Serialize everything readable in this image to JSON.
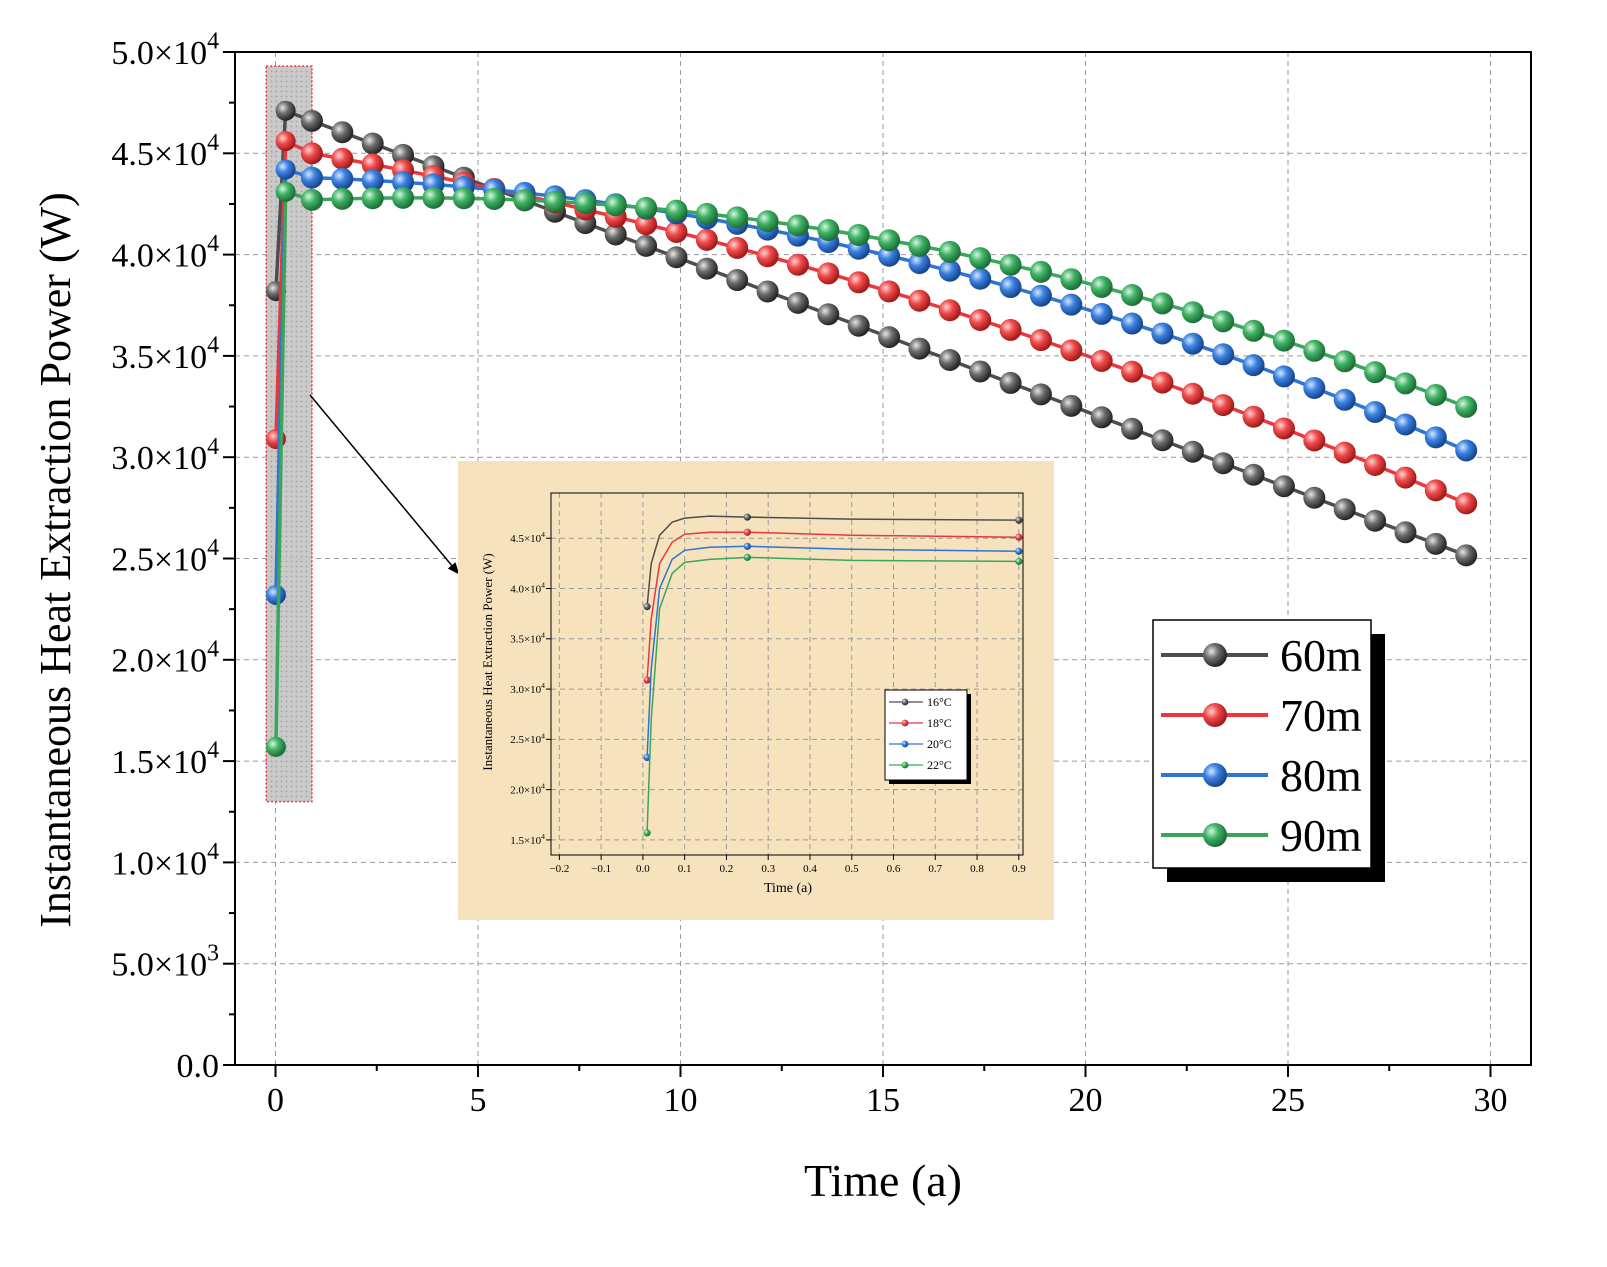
{
  "chart_data": [
    {
      "id": "main",
      "type": "line",
      "xlabel": "Time (a)",
      "ylabel": "Instantaneous Heat Extraction Power (W)",
      "xlim": [
        -1,
        31
      ],
      "ylim": [
        0,
        50000
      ],
      "xticks": [
        0,
        5,
        10,
        15,
        20,
        25,
        30
      ],
      "xtick_labels": [
        "0",
        "5",
        "10",
        "15",
        "20",
        "25",
        "30"
      ],
      "yticks": [
        0,
        5000,
        10000,
        15000,
        20000,
        25000,
        30000,
        35000,
        40000,
        45000,
        50000
      ],
      "ytick_labels": [
        {
          "base": "0.0",
          "exp": ""
        },
        {
          "base": "5.0×10",
          "exp": "3"
        },
        {
          "base": "1.0×10",
          "exp": "4"
        },
        {
          "base": "1.5×10",
          "exp": "4"
        },
        {
          "base": "2.0×10",
          "exp": "4"
        },
        {
          "base": "2.5×10",
          "exp": "4"
        },
        {
          "base": "3.0×10",
          "exp": "4"
        },
        {
          "base": "3.5×10",
          "exp": "4"
        },
        {
          "base": "4.0×10",
          "exp": "4"
        },
        {
          "base": "4.5×10",
          "exp": "4"
        },
        {
          "base": "5.0×10",
          "exp": "4"
        }
      ],
      "grid": true,
      "legend_position": "lower-right",
      "series": [
        {
          "name": "60m",
          "color": "#4d4d4d",
          "early": [
            [
              0.01,
              38200
            ],
            [
              0.25,
              47100
            ]
          ],
          "start_value": 46600,
          "end_value": 24700,
          "mid_value": 35700
        },
        {
          "name": "70m",
          "color": "#e8383d",
          "early": [
            [
              0.01,
              30900
            ],
            [
              0.25,
              45600
            ]
          ],
          "start_value": 45000,
          "end_value": 27200,
          "mid_value": 38000
        },
        {
          "name": "80m",
          "color": "#2f74d0",
          "early": [
            [
              0.01,
              23200
            ],
            [
              0.25,
              44200
            ]
          ],
          "start_value": 43800,
          "end_value": 29800,
          "mid_value": 39800
        },
        {
          "name": "90m",
          "color": "#3aa65c",
          "early": [
            [
              0.01,
              15700
            ],
            [
              0.25,
              43100
            ]
          ],
          "start_value": 42700,
          "end_value": 32000,
          "mid_value": 40600
        }
      ],
      "marker_times_start": 0.9,
      "marker_times_step": 0.75,
      "marker_times_end": 30
    },
    {
      "id": "inset",
      "type": "line",
      "xlabel": "Time (a)",
      "ylabel": "Instantaneous Heat Extraction Power (W)",
      "xlim": [
        -0.22,
        0.91
      ],
      "ylim": [
        13500,
        49500
      ],
      "xticks": [
        -0.2,
        -0.1,
        0,
        0.1,
        0.2,
        0.3,
        0.4,
        0.5,
        0.6,
        0.7,
        0.8,
        0.9
      ],
      "xtick_labels": [
        "−0.2",
        "−0.1",
        "0.0",
        "0.1",
        "0.2",
        "0.3",
        "0.4",
        "0.5",
        "0.6",
        "0.7",
        "0.8",
        "0.9"
      ],
      "yticks": [
        15000,
        20000,
        25000,
        30000,
        35000,
        40000,
        45000
      ],
      "ytick_labels": [
        {
          "base": "1.5×10",
          "exp": "4"
        },
        {
          "base": "2.0×10",
          "exp": "4"
        },
        {
          "base": "2.5×10",
          "exp": "4"
        },
        {
          "base": "3.0×10",
          "exp": "4"
        },
        {
          "base": "3.5×10",
          "exp": "4"
        },
        {
          "base": "4.0×10",
          "exp": "4"
        },
        {
          "base": "4.5×10",
          "exp": "4"
        }
      ],
      "grid": true,
      "legend_position": "center-right",
      "series": [
        {
          "name": "16°C",
          "color": "#4d4d4d",
          "points": [
            [
              0.01,
              38200
            ],
            [
              0.02,
              42500
            ],
            [
              0.04,
              45300
            ],
            [
              0.07,
              46600
            ],
            [
              0.1,
              47000
            ],
            [
              0.16,
              47200
            ],
            [
              0.25,
              47100
            ],
            [
              0.5,
              46900
            ],
            [
              0.9,
              46800
            ]
          ],
          "markers": [
            0.01,
            0.25,
            0.9
          ]
        },
        {
          "name": "18°C",
          "color": "#e8383d",
          "points": [
            [
              0.01,
              30900
            ],
            [
              0.02,
              37000
            ],
            [
              0.04,
              42500
            ],
            [
              0.07,
              44600
            ],
            [
              0.1,
              45400
            ],
            [
              0.16,
              45600
            ],
            [
              0.25,
              45600
            ],
            [
              0.5,
              45300
            ],
            [
              0.9,
              45100
            ]
          ],
          "markers": [
            0.01,
            0.25,
            0.9
          ]
        },
        {
          "name": "20°C",
          "color": "#2f74d0",
          "points": [
            [
              0.01,
              23200
            ],
            [
              0.02,
              32000
            ],
            [
              0.04,
              40000
            ],
            [
              0.07,
              42900
            ],
            [
              0.1,
              43800
            ],
            [
              0.16,
              44100
            ],
            [
              0.25,
              44200
            ],
            [
              0.5,
              43900
            ],
            [
              0.9,
              43700
            ]
          ],
          "markers": [
            0.01,
            0.25,
            0.9
          ]
        },
        {
          "name": "22°C",
          "color": "#3aa65c",
          "points": [
            [
              0.01,
              15700
            ],
            [
              0.02,
              27000
            ],
            [
              0.04,
              38000
            ],
            [
              0.07,
              41500
            ],
            [
              0.1,
              42600
            ],
            [
              0.16,
              42900
            ],
            [
              0.25,
              43100
            ],
            [
              0.5,
              42800
            ],
            [
              0.9,
              42700
            ]
          ],
          "markers": [
            0.01,
            0.25,
            0.9
          ]
        }
      ]
    }
  ],
  "colors": {
    "highlight_border": "#e8383d",
    "highlight_fill": "#bdbdbd",
    "inset_background": "#f6e3bd"
  }
}
